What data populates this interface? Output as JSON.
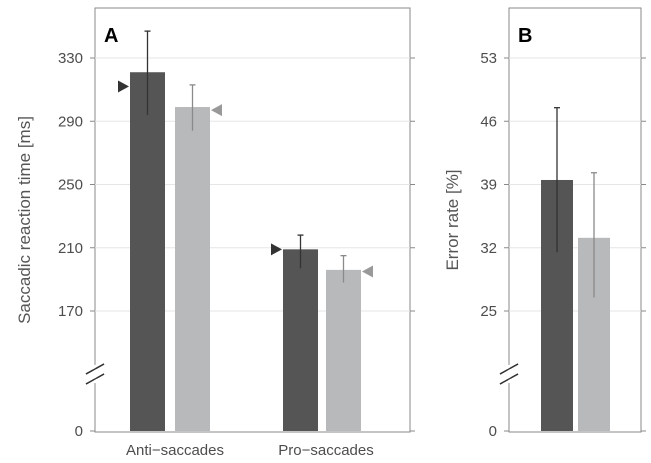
{
  "chart_data": [
    {
      "panel": "A",
      "type": "bar",
      "ylabel": "Saccadic reaction time [ms]",
      "yticks": [
        0,
        170,
        210,
        250,
        290,
        330
      ],
      "axis_break": true,
      "categories": [
        "Anti−saccades",
        "Pro−saccades"
      ],
      "series": [
        {
          "color": "#555555",
          "values": [
            321,
            209
          ],
          "error_low": [
            294,
            197
          ],
          "error_high": [
            347,
            218
          ],
          "marker_values": [
            312,
            209
          ],
          "marker_direction": "right"
        },
        {
          "color": "#b8b9bb",
          "values": [
            299,
            196
          ],
          "error_low": [
            284,
            188
          ],
          "error_high": [
            313,
            205
          ],
          "marker_values": [
            297,
            195
          ],
          "marker_direction": "left"
        }
      ],
      "grid": true
    },
    {
      "panel": "B",
      "type": "bar",
      "ylabel": "Error rate [%]",
      "yticks": [
        0,
        25,
        32,
        39,
        46,
        53
      ],
      "axis_break": true,
      "categories": [
        ""
      ],
      "series": [
        {
          "color": "#555555",
          "values": [
            39.5
          ],
          "error_low": [
            31.5
          ],
          "error_high": [
            47.5
          ]
        },
        {
          "color": "#b8b9bb",
          "values": [
            33.1
          ],
          "error_low": [
            26.5
          ],
          "error_high": [
            40.3
          ]
        }
      ],
      "grid": true
    }
  ]
}
